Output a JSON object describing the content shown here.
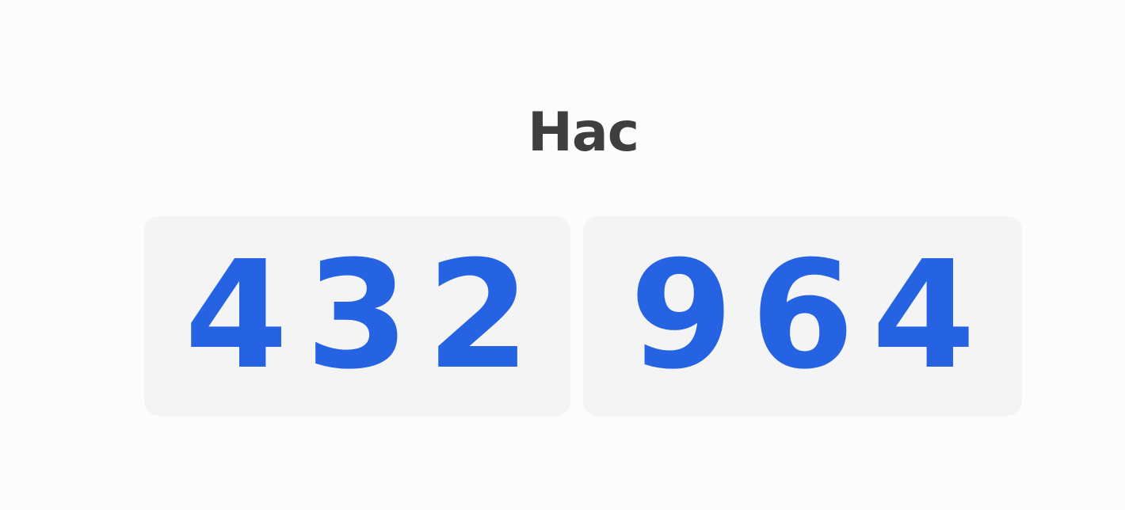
{
  "header": {
    "title": "Нас"
  },
  "counter": {
    "left_group": "432",
    "right_group": "964"
  },
  "colors": {
    "digit": "#2563e3",
    "title": "#3f3f3f",
    "box_background": "#f4f4f5",
    "page_background": "#fcfcfd"
  }
}
